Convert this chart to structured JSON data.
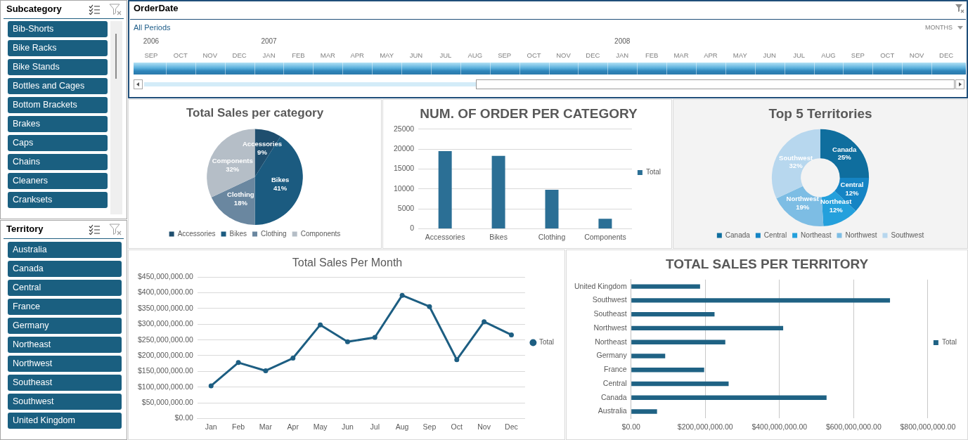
{
  "chart_data": [
    {
      "type": "other",
      "title": "Subcategory",
      "color": "#1a5f80",
      "annotations": [
        "Bib-Shorts",
        "Bike Racks",
        "Bike Stands",
        "Bottles and Cages",
        "Bottom Brackets",
        "Brakes",
        "Caps",
        "Chains",
        "Cleaners",
        "Cranksets"
      ]
    },
    {
      "type": "other",
      "title": "OrderDate",
      "categories": [
        "SEP",
        "OCT",
        "NOV",
        "DEC",
        "JAN",
        "FEB",
        "MAR",
        "APR",
        "MAY",
        "JUN",
        "JUL",
        "AUG",
        "SEP",
        "OCT",
        "NOV",
        "DEC",
        "JAN",
        "FEB",
        "MAR",
        "APR",
        "MAY",
        "JUN",
        "JUL",
        "AUG",
        "SEP",
        "OCT",
        "NOV",
        "DEC"
      ],
      "annotations": [
        "All Periods",
        "MONTHS",
        {
          "text": "2006",
          "x": "SEP"
        },
        {
          "text": "2007",
          "x": "JAN"
        },
        {
          "text": "2008",
          "x": "JAN"
        }
      ]
    },
    {
      "type": "pie",
      "title": "Total Sales per category",
      "categories": [
        "Accessories",
        "Bikes",
        "Clothing",
        "Components"
      ],
      "values": [
        9,
        41,
        18,
        32
      ],
      "value_labels": [
        "9%",
        "41%",
        "18%",
        "32%"
      ],
      "colors": [
        "#1f4e6e",
        "#1b5b80",
        "#6a87a0",
        "#b5bec7"
      ],
      "legend": "bottom"
    },
    {
      "type": "bar",
      "title": "NUM. OF ORDER PER CATEGORY",
      "categories": [
        "Accessories",
        "Bikes",
        "Clothing",
        "Components"
      ],
      "series": [
        {
          "name": "Total",
          "color": "#2b6f95",
          "values": [
            19500,
            18300,
            9800,
            2500
          ]
        }
      ],
      "ylim": [
        0,
        25000
      ],
      "yticks": [
        0,
        5000,
        10000,
        15000,
        20000,
        25000
      ],
      "grid": "y",
      "legend": "right"
    },
    {
      "type": "donut",
      "title": "Top 5 Territories",
      "categories": [
        "Canada",
        "Central",
        "Northeast",
        "Northwest",
        "Southwest"
      ],
      "values": [
        25,
        12,
        12,
        19,
        32
      ],
      "value_labels": [
        "25%",
        "12%",
        "12%",
        "19%",
        "32%"
      ],
      "colors": [
        "#0f6e9e",
        "#1584c4",
        "#24a0dc",
        "#7dbde4",
        "#b7d7ee"
      ],
      "legend": "bottom"
    },
    {
      "type": "other",
      "title": "Territory",
      "color": "#1a5f80",
      "annotations": [
        "Australia",
        "Canada",
        "Central",
        "France",
        "Germany",
        "Northeast",
        "Northwest",
        "Southeast",
        "Southwest",
        "United Kingdom"
      ]
    },
    {
      "type": "line",
      "title": "Total Sales Per Month",
      "categories": [
        "Jan",
        "Feb",
        "Mar",
        "Apr",
        "May",
        "Jun",
        "Jul",
        "Aug",
        "Sep",
        "Oct",
        "Nov",
        "Dec"
      ],
      "series": [
        {
          "name": "Total",
          "color": "#1d5e82",
          "values": [
            104000000,
            178000000,
            152000000,
            192000000,
            298000000,
            244000000,
            258000000,
            392000000,
            356000000,
            187000000,
            308000000,
            266000000
          ]
        }
      ],
      "ylim": [
        0,
        450000000
      ],
      "yticks": [
        {
          "value": 0,
          "label": "$0.00"
        },
        {
          "value": 50000000,
          "label": "$50,000,000.00"
        },
        {
          "value": 100000000,
          "label": "$100,000,000.00"
        },
        {
          "value": 150000000,
          "label": "$150,000,000.00"
        },
        {
          "value": 200000000,
          "label": "$200,000,000.00"
        },
        {
          "value": 250000000,
          "label": "$250,000,000.00"
        },
        {
          "value": 300000000,
          "label": "$300,000,000.00"
        },
        {
          "value": 350000000,
          "label": "$350,000,000.00"
        },
        {
          "value": 400000000,
          "label": "$400,000,000.00"
        },
        {
          "value": 450000000,
          "label": "$450,000,000.00"
        }
      ],
      "grid": "y",
      "legend": "right",
      "marker": "circle",
      "line_style": "solid"
    },
    {
      "type": "bar",
      "orientation": "horizontal",
      "title": "TOTAL SALES PER TERRITORY",
      "categories": [
        "United Kingdom",
        "Southwest",
        "Southeast",
        "Northwest",
        "Northeast",
        "Germany",
        "France",
        "Central",
        "Canada",
        "Australia"
      ],
      "series": [
        {
          "name": "Total",
          "color": "#1f6284",
          "values": [
            186000000,
            698000000,
            225000000,
            410000000,
            254000000,
            92000000,
            197000000,
            263000000,
            527000000,
            70000000
          ]
        }
      ],
      "xlim": [
        0,
        800000000
      ],
      "xticks": [
        {
          "value": 0,
          "label": "$0.00"
        },
        {
          "value": 200000000,
          "label": "$200,000,000.00"
        },
        {
          "value": 400000000,
          "label": "$400,000,000.00"
        },
        {
          "value": 600000000,
          "label": "$600,000,000.00"
        },
        {
          "value": 800000000,
          "label": "$800,000,000.00"
        }
      ],
      "grid": "x",
      "legend": "right"
    }
  ]
}
